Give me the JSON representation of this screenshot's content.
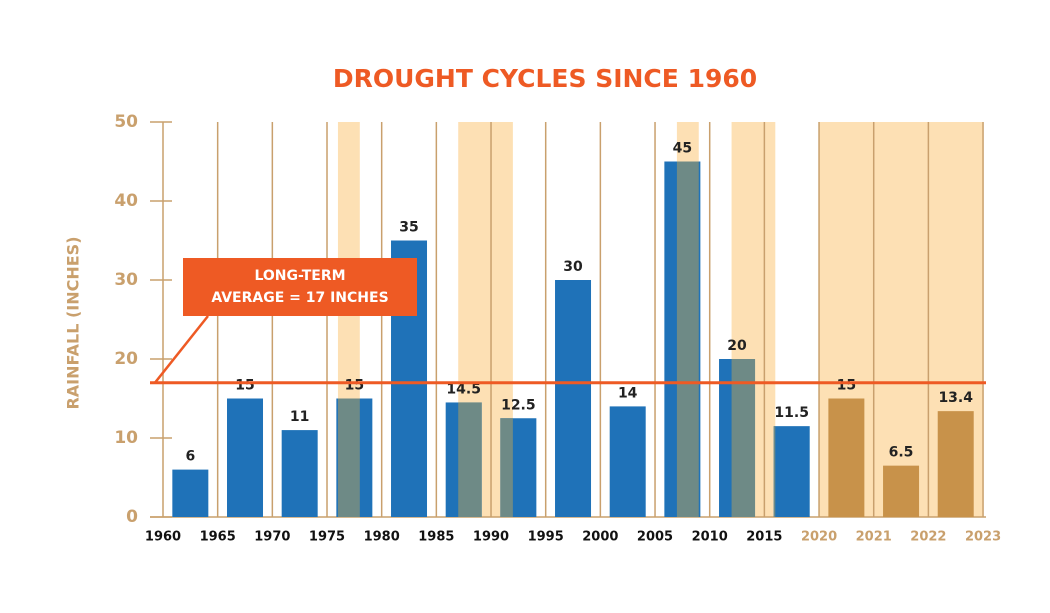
{
  "chart_data": {
    "type": "bar",
    "title": "DROUGHT CYCLES SINCE 1960",
    "y_label": "RAINFALL (INCHES)",
    "boundaries": [
      1960,
      1965,
      1970,
      1975,
      1980,
      1985,
      1990,
      1995,
      2000,
      2005,
      2010,
      2015,
      2020,
      2021,
      2022,
      2023
    ],
    "values": [
      6,
      15,
      11,
      15,
      35,
      14.5,
      12.5,
      30,
      14,
      45,
      20,
      11.5,
      15,
      6.5,
      13.4
    ],
    "colors": [
      "#1f72b8",
      "#1f72b8",
      "#1f72b8",
      "#1f72b8",
      "#1f72b8",
      "#1f72b8",
      "#1f72b8",
      "#1f72b8",
      "#1f72b8",
      "#1f72b8",
      "#1f72b8",
      "#1f72b8",
      "#c8924a",
      "#c8924a",
      "#c8924a"
    ],
    "drought_periods": [
      [
        1976,
        1978
      ],
      [
        1987,
        1992
      ],
      [
        2007,
        2009
      ],
      [
        2012,
        2016
      ],
      [
        2020,
        2023
      ]
    ],
    "drought_color": "#fde0b4",
    "overlap_color": "#6e8a86",
    "average": 17,
    "average_color": "#ee5a24",
    "average_label": [
      "LONG-TERM",
      "AVERAGE = 17 INCHES"
    ],
    "ylim": [
      0,
      50
    ],
    "yticks": [
      0,
      10,
      20,
      30,
      40,
      50
    ],
    "axis_color": "#c9a06d"
  }
}
